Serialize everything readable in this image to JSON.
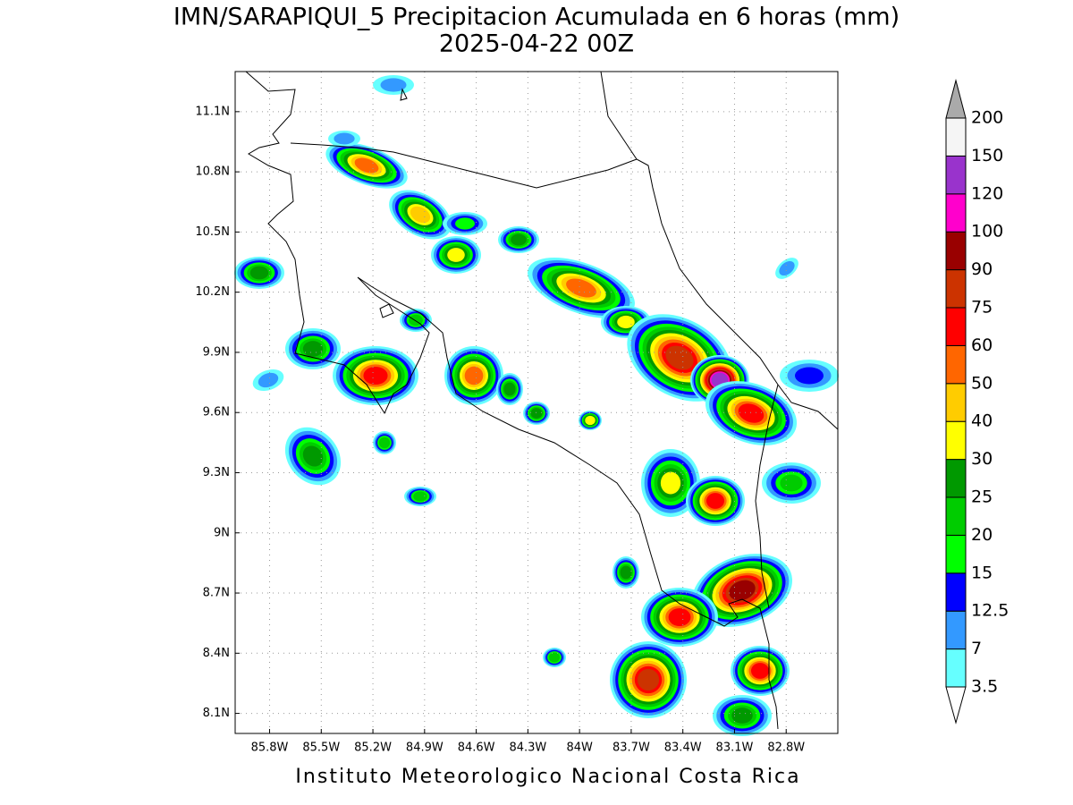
{
  "header": {
    "title": "IMN/SARAPIQUI_5 Precipitacion Acumulada en 6 horas (mm)",
    "subtitle": "2025-04-22 00Z"
  },
  "map": {
    "xlim": [
      -86.0,
      -82.5
    ],
    "ylim": [
      8.0,
      11.3
    ],
    "xticks": [
      {
        "value": -85.8,
        "label": "85.8W"
      },
      {
        "value": -85.5,
        "label": "85.5W"
      },
      {
        "value": -85.2,
        "label": "85.2W"
      },
      {
        "value": -84.9,
        "label": "84.9W"
      },
      {
        "value": -84.6,
        "label": "84.6W"
      },
      {
        "value": -84.3,
        "label": "84.3W"
      },
      {
        "value": -84.0,
        "label": "84W"
      },
      {
        "value": -83.7,
        "label": "83.7W"
      },
      {
        "value": -83.4,
        "label": "83.4W"
      },
      {
        "value": -83.1,
        "label": "83.1W"
      },
      {
        "value": -82.8,
        "label": "82.8W"
      }
    ],
    "yticks": [
      {
        "value": 8.1,
        "label": "8.1N"
      },
      {
        "value": 8.4,
        "label": "8.4N"
      },
      {
        "value": 8.7,
        "label": "8.7N"
      },
      {
        "value": 9.0,
        "label": "9N"
      },
      {
        "value": 9.3,
        "label": "9.3N"
      },
      {
        "value": 9.6,
        "label": "9.6N"
      },
      {
        "value": 9.9,
        "label": "9.9N"
      },
      {
        "value": 10.2,
        "label": "10.2N"
      },
      {
        "value": 10.5,
        "label": "10.5N"
      },
      {
        "value": 10.8,
        "label": "10.8N"
      },
      {
        "value": 11.1,
        "label": "11.1N"
      }
    ],
    "grid": true
  },
  "colorbar": {
    "levels": [
      3.5,
      7,
      12.5,
      15,
      20,
      25,
      30,
      40,
      50,
      60,
      75,
      90,
      100,
      120,
      150,
      200
    ],
    "colors": [
      "#66ffff",
      "#3399ff",
      "#0000ff",
      "#00ff00",
      "#00cc00",
      "#009900",
      "#ffff00",
      "#ffcc00",
      "#ff6600",
      "#ff0000",
      "#cc3300",
      "#990000",
      "#ff00cc",
      "#9933cc",
      "#f5f5f5"
    ],
    "under_color": "#ffffff",
    "over_color": "#aaaaaa"
  },
  "footer": "Instituto Meteorologico Nacional Costa Rica"
}
